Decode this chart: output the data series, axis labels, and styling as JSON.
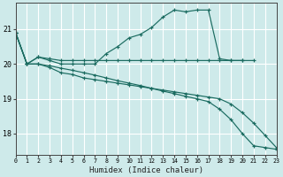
{
  "xlabel": "Humidex (Indice chaleur)",
  "x_ticks": [
    0,
    1,
    2,
    3,
    4,
    5,
    6,
    7,
    8,
    9,
    10,
    11,
    12,
    13,
    14,
    15,
    16,
    17,
    18,
    19,
    20,
    21,
    22,
    23
  ],
  "y_ticks": [
    18,
    19,
    20,
    21
  ],
  "xlim": [
    0,
    23
  ],
  "ylim": [
    17.4,
    21.75
  ],
  "bg_color": "#ceeaea",
  "grid_color": "#ffffff",
  "line_color": "#1a6b60",
  "series": [
    {
      "x": [
        0,
        1,
        2,
        3,
        4,
        5,
        6,
        7,
        8,
        9,
        10,
        11,
        12,
        13,
        14,
        15,
        16,
        17,
        18,
        19,
        20
      ],
      "y": [
        20.9,
        20.0,
        20.2,
        20.1,
        20.0,
        20.0,
        20.0,
        20.0,
        20.3,
        20.5,
        20.75,
        20.85,
        21.05,
        21.35,
        21.55,
        21.5,
        21.55,
        21.55,
        20.15,
        20.1,
        20.1
      ]
    },
    {
      "x": [
        0,
        1,
        2,
        3,
        4,
        5,
        6,
        7,
        8,
        9,
        10,
        11,
        12,
        13,
        14,
        15,
        16,
        17,
        18,
        19,
        20,
        21
      ],
      "y": [
        20.9,
        20.0,
        20.2,
        20.15,
        20.1,
        20.1,
        20.1,
        20.1,
        20.1,
        20.1,
        20.1,
        20.1,
        20.1,
        20.1,
        20.1,
        20.1,
        20.1,
        20.1,
        20.1,
        20.1,
        20.1,
        20.1
      ]
    },
    {
      "x": [
        0,
        1,
        2,
        3,
        4,
        5,
        6,
        7,
        8,
        9,
        10,
        11,
        12,
        13,
        14,
        15,
        16,
        17,
        18,
        19,
        20,
        21,
        22,
        23
      ],
      "y": [
        20.9,
        20.0,
        20.0,
        19.9,
        19.75,
        19.7,
        19.6,
        19.55,
        19.5,
        19.45,
        19.4,
        19.35,
        19.3,
        19.25,
        19.2,
        19.15,
        19.1,
        19.05,
        19.0,
        18.85,
        18.6,
        18.3,
        17.95,
        17.6
      ]
    },
    {
      "x": [
        0,
        1,
        2,
        3,
        4,
        5,
        6,
        7,
        8,
        9,
        10,
        11,
        12,
        13,
        14,
        15,
        16,
        17,
        18,
        19,
        20,
        21,
        22,
        23
      ],
      "y": [
        20.9,
        20.0,
        20.0,
        19.95,
        19.88,
        19.82,
        19.75,
        19.68,
        19.6,
        19.52,
        19.45,
        19.38,
        19.3,
        19.22,
        19.15,
        19.07,
        19.0,
        18.92,
        18.7,
        18.4,
        18.0,
        17.65,
        17.6,
        17.55
      ]
    }
  ]
}
